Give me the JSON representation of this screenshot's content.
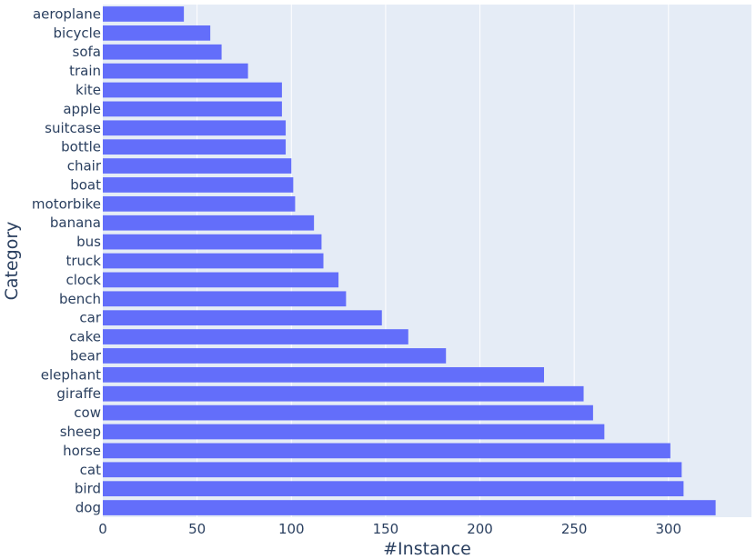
{
  "chart_data": {
    "type": "bar",
    "orientation": "horizontal",
    "categories": [
      "aeroplane",
      "bicycle",
      "sofa",
      "train",
      "kite",
      "apple",
      "suitcase",
      "bottle",
      "chair",
      "boat",
      "motorbike",
      "banana",
      "bus",
      "truck",
      "clock",
      "bench",
      "car",
      "cake",
      "bear",
      "elephant",
      "giraffe",
      "cow",
      "sheep",
      "horse",
      "cat",
      "bird",
      "dog"
    ],
    "values": [
      43,
      57,
      63,
      77,
      95,
      95,
      97,
      97,
      100,
      101,
      102,
      112,
      116,
      117,
      125,
      129,
      148,
      162,
      182,
      234,
      255,
      260,
      266,
      301,
      307,
      308,
      325
    ],
    "xlabel": "#Instance",
    "ylabel": "Category",
    "xlim": [
      0,
      344
    ],
    "xticks": [
      0,
      50,
      100,
      150,
      200,
      250,
      300
    ],
    "grid": true,
    "colors": {
      "bar": "#636efa",
      "plot_bg": "#e5ecf6",
      "grid": "#ffffff",
      "text": "#2a3f5f"
    }
  }
}
